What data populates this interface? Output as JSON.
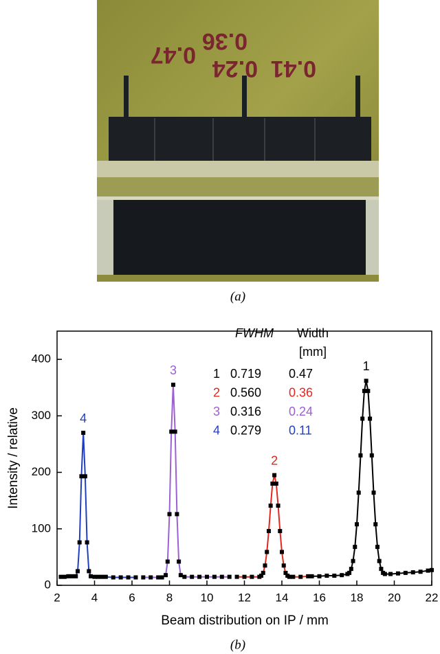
{
  "photo": {
    "labels": [
      "0.41",
      "0.24",
      "0.36",
      "0.47"
    ],
    "caption": "(a)"
  },
  "chart_data": {
    "type": "line",
    "caption": "(b)",
    "x_label": "Beam distribution on IP / mm",
    "y_label": "Intensity / relative",
    "xlim": [
      2,
      22
    ],
    "xticks": [
      2,
      4,
      6,
      8,
      10,
      12,
      14,
      16,
      18,
      20,
      22
    ],
    "ylim": [
      0,
      450
    ],
    "yticks": [
      0,
      100,
      200,
      300,
      400
    ],
    "series": [
      {
        "name": "4",
        "color": "#1f3fbf",
        "x": [
          2.2,
          2.4,
          2.6,
          2.8,
          3.0,
          3.1,
          3.2,
          3.3,
          3.4,
          3.5,
          3.6,
          3.7,
          3.8,
          4.0,
          4.2,
          4.4,
          4.6,
          5.0,
          5.4,
          5.8,
          6.2
        ],
        "values": [
          15,
          15,
          16,
          16,
          16,
          25,
          76,
          193,
          270,
          193,
          76,
          25,
          16,
          15,
          15,
          15,
          15,
          14,
          14,
          14,
          14
        ]
      },
      {
        "name": "3",
        "color": "#9b5fd6",
        "x": [
          6.6,
          7.0,
          7.4,
          7.6,
          7.8,
          7.9,
          8.0,
          8.1,
          8.2,
          8.3,
          8.4,
          8.5,
          8.6,
          8.8,
          9.2,
          9.6,
          10.0,
          10.4,
          10.8,
          11.2
        ],
        "values": [
          14,
          14,
          14,
          14,
          18,
          42,
          126,
          272,
          355,
          272,
          126,
          42,
          18,
          15,
          15,
          15,
          15,
          15,
          15,
          15
        ]
      },
      {
        "name": "2",
        "color": "#e0281e",
        "x": [
          11.6,
          12.0,
          12.4,
          12.8,
          12.9,
          13.0,
          13.1,
          13.2,
          13.3,
          13.4,
          13.5,
          13.6,
          13.7,
          13.8,
          13.9,
          14.0,
          14.1,
          14.2,
          14.3,
          14.4,
          14.6,
          15.0,
          15.4
        ],
        "values": [
          15,
          15,
          15,
          15,
          17,
          22,
          35,
          59,
          96,
          141,
          180,
          195,
          180,
          141,
          96,
          59,
          35,
          22,
          17,
          15,
          15,
          15,
          16
        ]
      },
      {
        "name": "1",
        "color": "#000000",
        "x": [
          15.6,
          16.0,
          16.4,
          16.8,
          17.2,
          17.5,
          17.6,
          17.7,
          17.8,
          17.9,
          18.0,
          18.1,
          18.2,
          18.3,
          18.4,
          18.5,
          18.6,
          18.7,
          18.8,
          18.9,
          19.0,
          19.1,
          19.2,
          19.3,
          19.4,
          19.5,
          19.8,
          20.2,
          20.6,
          21.0,
          21.4,
          21.8,
          22.0
        ],
        "values": [
          16,
          16,
          17,
          17,
          18,
          20,
          22,
          29,
          43,
          68,
          108,
          164,
          230,
          295,
          344,
          362,
          344,
          295,
          230,
          164,
          108,
          68,
          43,
          29,
          22,
          20,
          20,
          21,
          22,
          23,
          24,
          26,
          27
        ]
      }
    ],
    "table": {
      "header": [
        "FWHM",
        "Width",
        "[mm]"
      ],
      "rows": [
        [
          "1",
          "0.719",
          "0.47"
        ],
        [
          "2",
          "0.560",
          "0.36"
        ],
        [
          "3",
          "0.316",
          "0.24"
        ],
        [
          "4",
          "0.279",
          "0.11"
        ]
      ]
    }
  }
}
